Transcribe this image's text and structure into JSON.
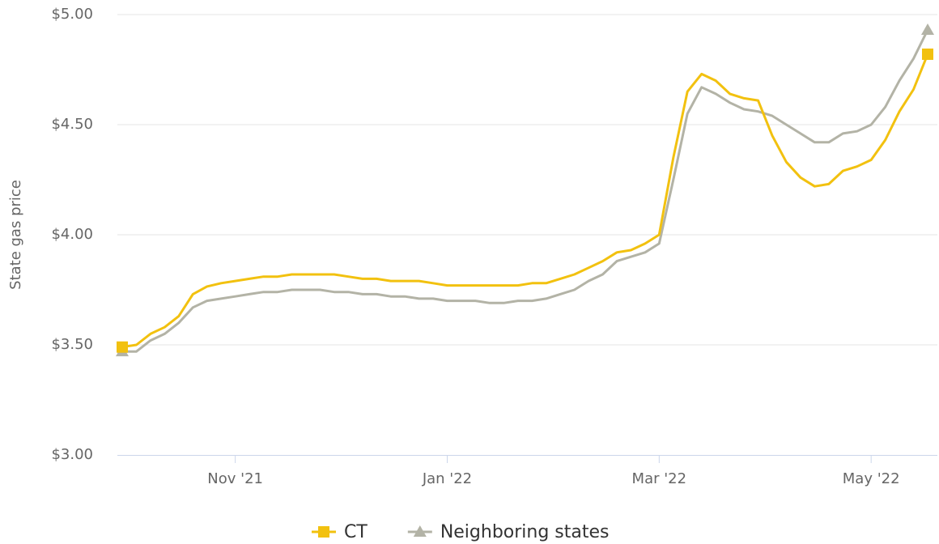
{
  "chart_data": {
    "type": "line",
    "y_axis_label": "State gas price",
    "categories": [
      null,
      null,
      null,
      null,
      null,
      null,
      null,
      null,
      "Nov '21",
      null,
      null,
      null,
      null,
      null,
      null,
      null,
      null,
      null,
      null,
      null,
      null,
      null,
      null,
      "Jan '22",
      null,
      null,
      null,
      null,
      null,
      null,
      null,
      null,
      null,
      null,
      null,
      null,
      null,
      null,
      "Mar '22",
      null,
      null,
      null,
      null,
      null,
      null,
      null,
      null,
      null,
      null,
      null,
      null,
      null,
      null,
      "May '22",
      null,
      null,
      null,
      null
    ],
    "series": [
      {
        "name": "CT",
        "color": "#f2c10f",
        "marker": "square",
        "values": [
          3.49,
          3.5,
          3.55,
          3.58,
          3.63,
          3.73,
          3.765,
          3.78,
          3.79,
          3.8,
          3.81,
          3.81,
          3.82,
          3.82,
          3.82,
          3.82,
          3.81,
          3.8,
          3.8,
          3.79,
          3.79,
          3.79,
          3.78,
          3.77,
          3.77,
          3.77,
          3.77,
          3.77,
          3.77,
          3.78,
          3.78,
          3.8,
          3.82,
          3.85,
          3.88,
          3.92,
          3.93,
          3.96,
          4.0,
          4.35,
          4.65,
          4.73,
          4.7,
          4.64,
          4.62,
          4.61,
          4.45,
          4.33,
          4.26,
          4.22,
          4.23,
          4.29,
          4.31,
          4.34,
          4.43,
          4.56,
          4.66,
          4.82
        ]
      },
      {
        "name": "Neighboring states",
        "color": "#b3b3a6",
        "marker": "triangle",
        "values": [
          3.47,
          3.47,
          3.52,
          3.55,
          3.6,
          3.67,
          3.7,
          3.71,
          3.72,
          3.73,
          3.74,
          3.74,
          3.75,
          3.75,
          3.75,
          3.74,
          3.74,
          3.73,
          3.73,
          3.72,
          3.72,
          3.71,
          3.71,
          3.7,
          3.7,
          3.7,
          3.69,
          3.69,
          3.7,
          3.7,
          3.71,
          3.73,
          3.75,
          3.79,
          3.82,
          3.88,
          3.9,
          3.92,
          3.96,
          4.25,
          4.55,
          4.67,
          4.64,
          4.6,
          4.57,
          4.56,
          4.54,
          4.5,
          4.46,
          4.42,
          4.42,
          4.46,
          4.47,
          4.5,
          4.58,
          4.7,
          4.8,
          4.93
        ]
      }
    ],
    "ylim": [
      3.0,
      5.0
    ],
    "yticks": [
      {
        "value": 3.0,
        "label": "$3.00"
      },
      {
        "value": 3.5,
        "label": "$3.50"
      },
      {
        "value": 4.0,
        "label": "$4.00"
      },
      {
        "value": 4.5,
        "label": "$4.50"
      },
      {
        "value": 5.0,
        "label": "$5.00"
      }
    ],
    "grid": true,
    "legend": "bottom"
  }
}
